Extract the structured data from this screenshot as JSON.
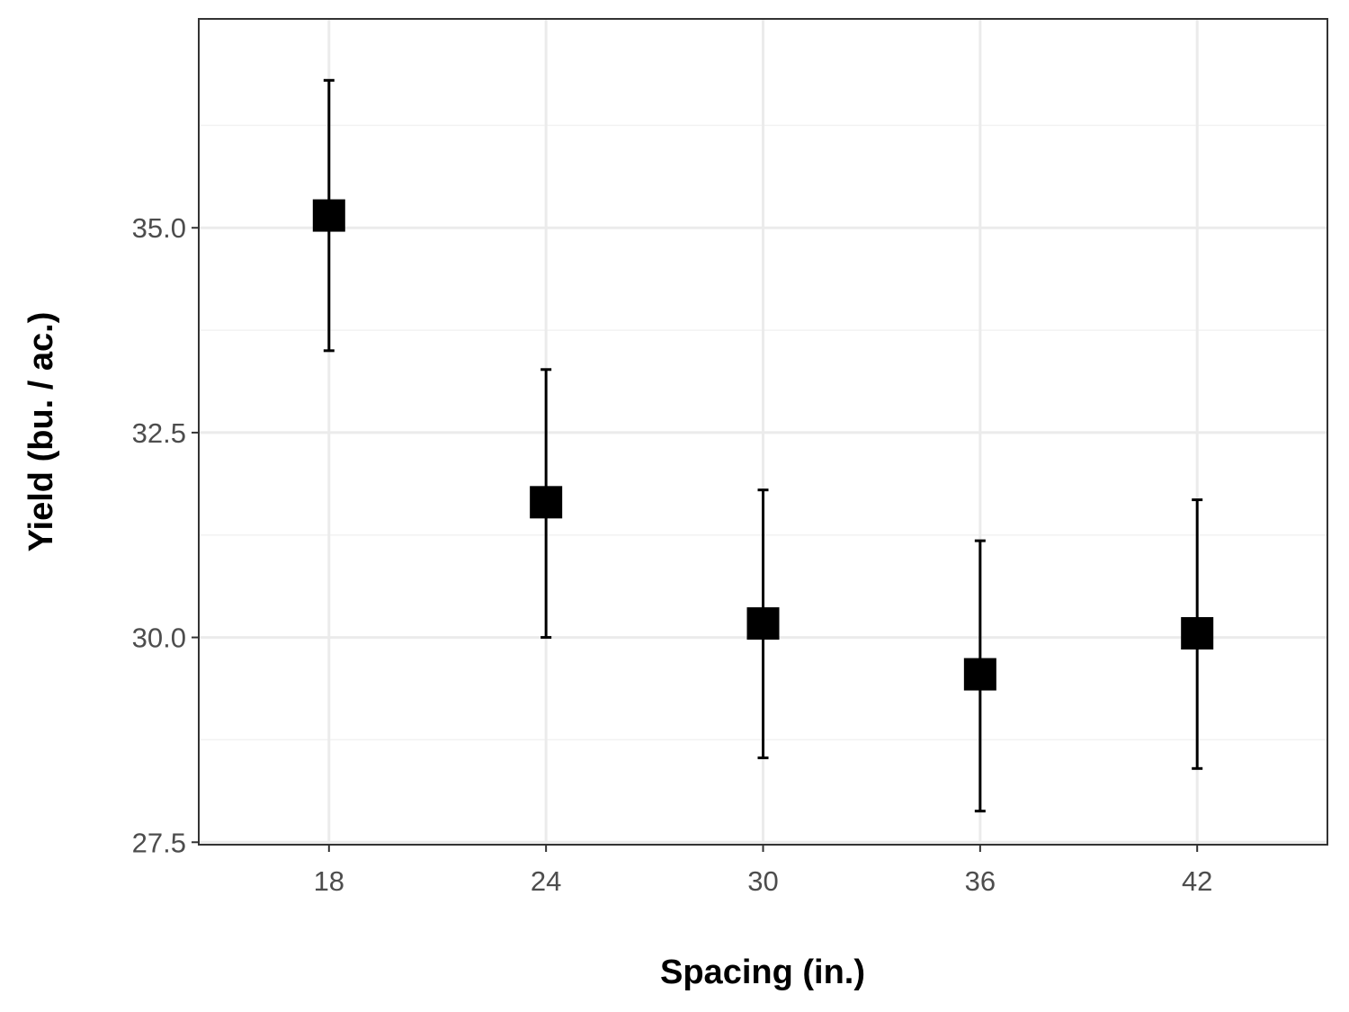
{
  "chart_data": {
    "type": "scatter",
    "title": "",
    "xlabel": "Spacing (in.)",
    "ylabel": "Yield (bu. / ac.)",
    "x": [
      18,
      24,
      30,
      36,
      42
    ],
    "x_tick_labels": [
      "18",
      "24",
      "30",
      "36",
      "42"
    ],
    "y_ticks": [
      27.5,
      30.0,
      32.5,
      35.0
    ],
    "y_tick_labels": [
      "27.5",
      "30.0",
      "32.5",
      "35.0"
    ],
    "xlim": [
      14.4,
      45.6
    ],
    "ylim": [
      27.47,
      37.55
    ],
    "grid": true,
    "series": [
      {
        "values": [
          35.15,
          31.65,
          30.17,
          29.55,
          30.05
        ],
        "lower": [
          33.5,
          30.0,
          28.53,
          27.88,
          28.4
        ],
        "upper": [
          36.8,
          33.27,
          31.8,
          31.18,
          31.68
        ]
      }
    ],
    "colors": {
      "marker": "#000000",
      "errorbar": "#000000",
      "grid_major": "#ebebeb",
      "grid_minor": "#f2f2f2",
      "panel_border": "#333333"
    }
  }
}
